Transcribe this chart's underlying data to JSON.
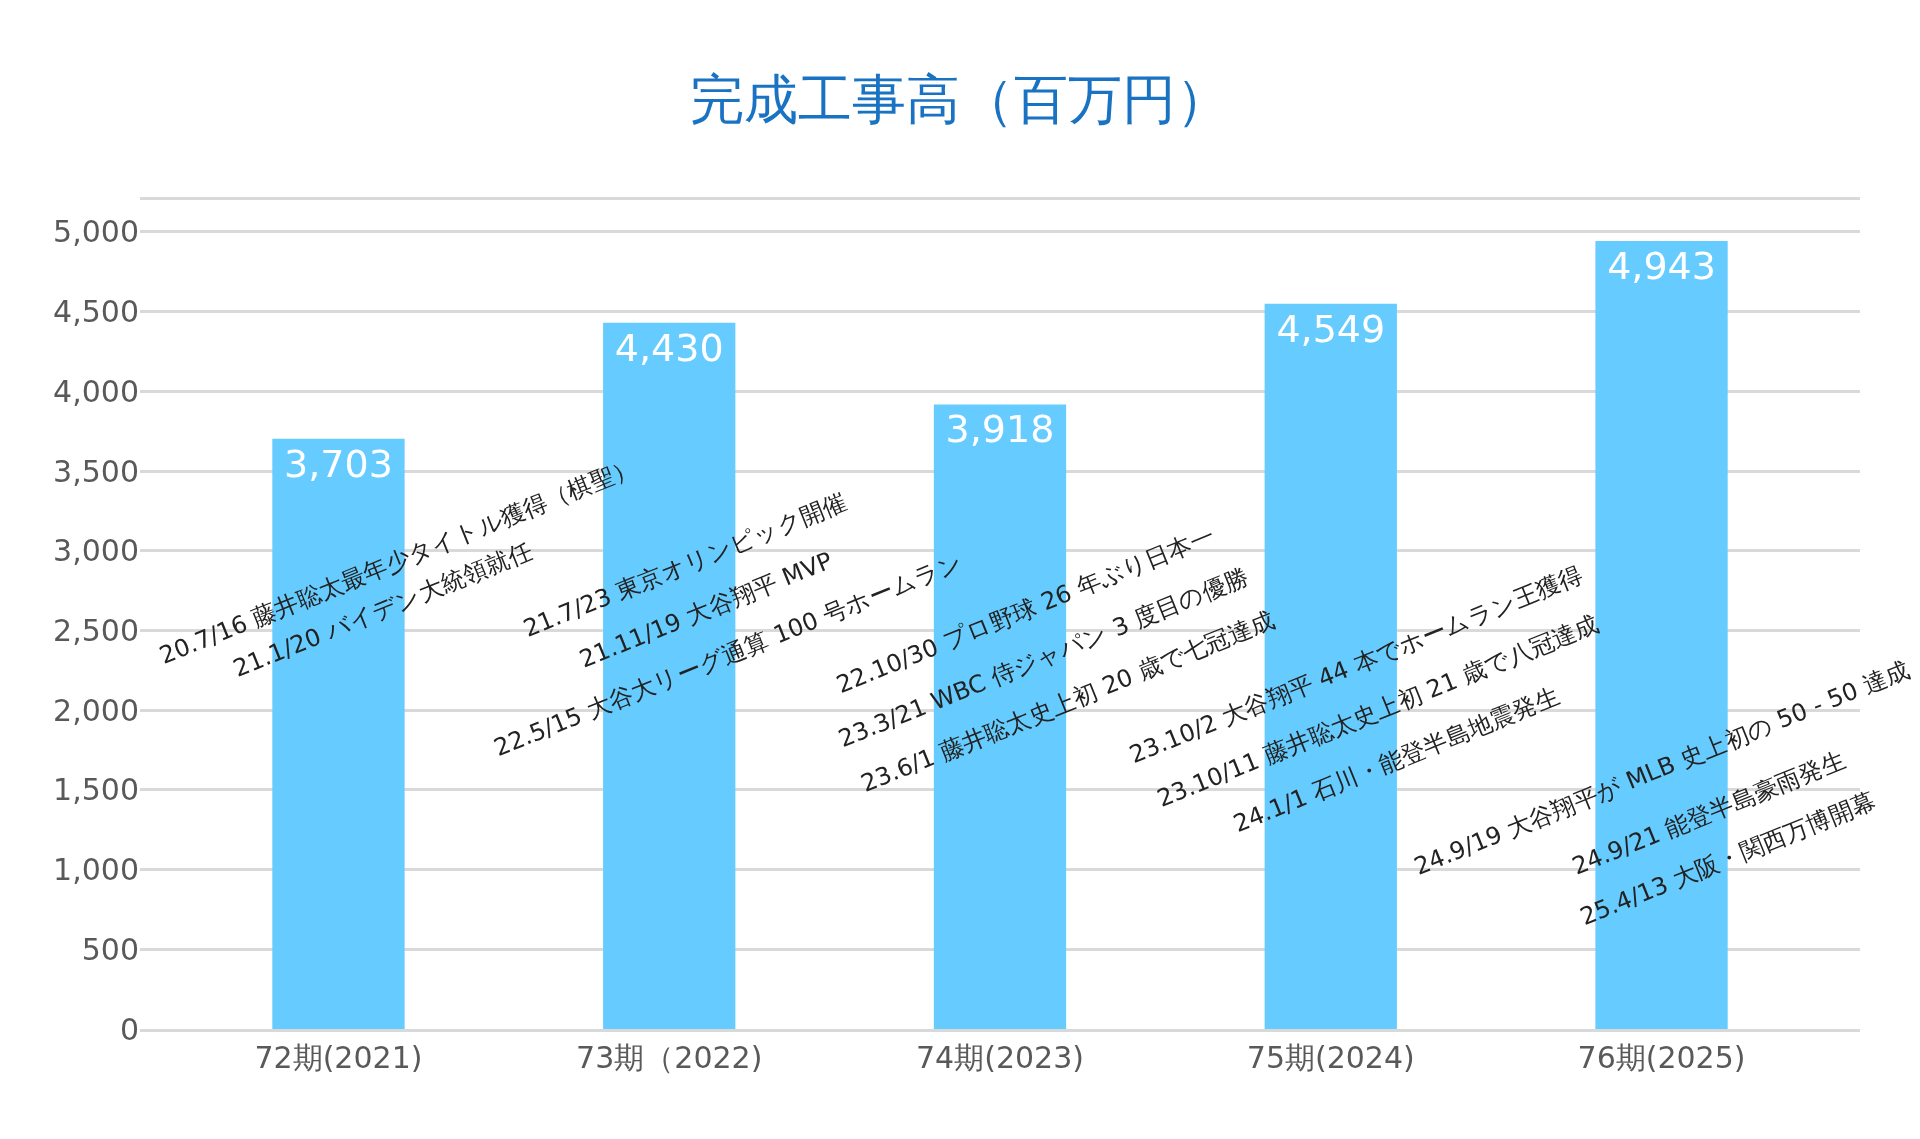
{
  "chart_data": {
    "type": "bar",
    "title": "完成工事高（百万円）",
    "categories": [
      "72期(2021)",
      "73期（2022)",
      "74期(2023)",
      "75期(2024)",
      "76期(2025)"
    ],
    "values": [
      3703,
      4430,
      3918,
      4549,
      4943
    ],
    "value_labels": [
      "3,703",
      "4,430",
      "3,918",
      "4,549",
      "4,943"
    ],
    "color": "#66ccff",
    "ylim": [
      0,
      5200
    ],
    "yticks": [
      {
        "value": 0,
        "label": "0"
      },
      {
        "value": 500,
        "label": "500"
      },
      {
        "value": 1000,
        "label": "1,000"
      },
      {
        "value": 1500,
        "label": "1,500"
      },
      {
        "value": 2000,
        "label": "2,000"
      },
      {
        "value": 2500,
        "label": "2,500"
      },
      {
        "value": 3000,
        "label": "3,000"
      },
      {
        "value": 3500,
        "label": "3,500"
      },
      {
        "value": 4000,
        "label": "4,000"
      },
      {
        "value": 4500,
        "label": "4,500"
      },
      {
        "value": 5000,
        "label": "5,000"
      }
    ],
    "grid": "y",
    "annotations": [
      "20.7/16 藤井聡太最年少タイトル獲得（棋聖）",
      "21.1/20 バイデン大統領就任",
      "21.7/23 東京オリンピック開催",
      "21.11/19 大谷翔平 MVP",
      "22.5/15 大谷大リーグ通算 100 号ホームラン",
      "22.10/30 プロ野球 26 年ぶり日本一",
      "23.3/21 WBC 侍ジャパン 3 度目の優勝",
      "23.6/1 藤井聡太史上初 20 歳で七冠達成",
      "23.10/2 大谷翔平 44 本でホームラン王獲得",
      "23.10/11 藤井聡太史上初 21 歳で八冠達成",
      "24.1/1 石川・能登半島地震発生",
      "24.9/19 大谷翔平が MLB 史上初の 50 - 50 達成",
      "24.9/21 能登半島豪雨発生",
      "25.4/13 大阪・関西万博開幕"
    ]
  }
}
